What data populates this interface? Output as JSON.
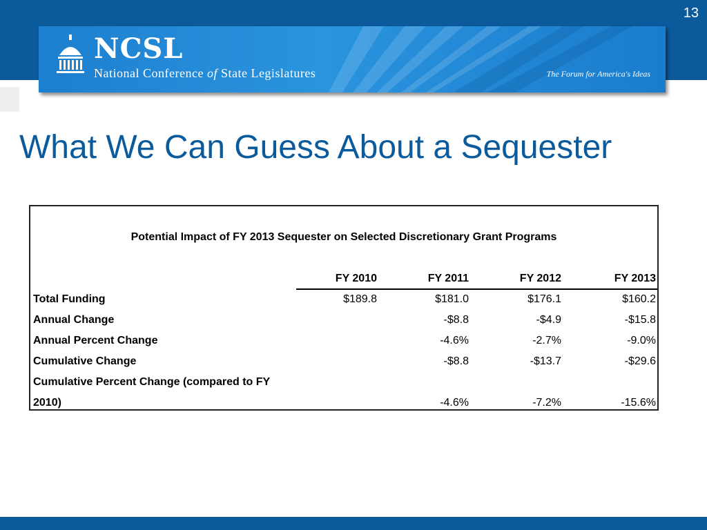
{
  "slide": {
    "number": "13",
    "title": "What We Can Guess About a Sequester"
  },
  "header": {
    "brand_abbr": "NCSL",
    "brand_full_part1": "National Conference",
    "brand_full_of": "of",
    "brand_full_part2": "State Legislatures",
    "tagline": "The Forum for America's Ideas",
    "colors": {
      "band": "#0b5a9c",
      "banner": "#1d7fcf"
    }
  },
  "table": {
    "caption": "Potential Impact of FY 2013 Sequester on Selected Discretionary Grant Programs",
    "columns": [
      "FY 2010",
      "FY 2011",
      "FY 2012",
      "FY 2013"
    ],
    "rows": [
      {
        "label": "Total Funding",
        "values": [
          "$189.8",
          "$181.0",
          "$176.1",
          "$160.2"
        ]
      },
      {
        "label": "Annual Change",
        "values": [
          "",
          "-$8.8",
          "-$4.9",
          "-$15.8"
        ]
      },
      {
        "label": "Annual Percent Change",
        "values": [
          "",
          "-4.6%",
          "-2.7%",
          "-9.0%"
        ]
      },
      {
        "label": "Cumulative Change",
        "values": [
          "",
          "-$8.8",
          "-$13.7",
          "-$29.6"
        ]
      },
      {
        "label_line1": "Cumulative Percent Change (compared to FY",
        "label_line2": "2010)",
        "values": [
          "",
          "-4.6%",
          "-7.2%",
          "-15.6%"
        ]
      }
    ]
  }
}
